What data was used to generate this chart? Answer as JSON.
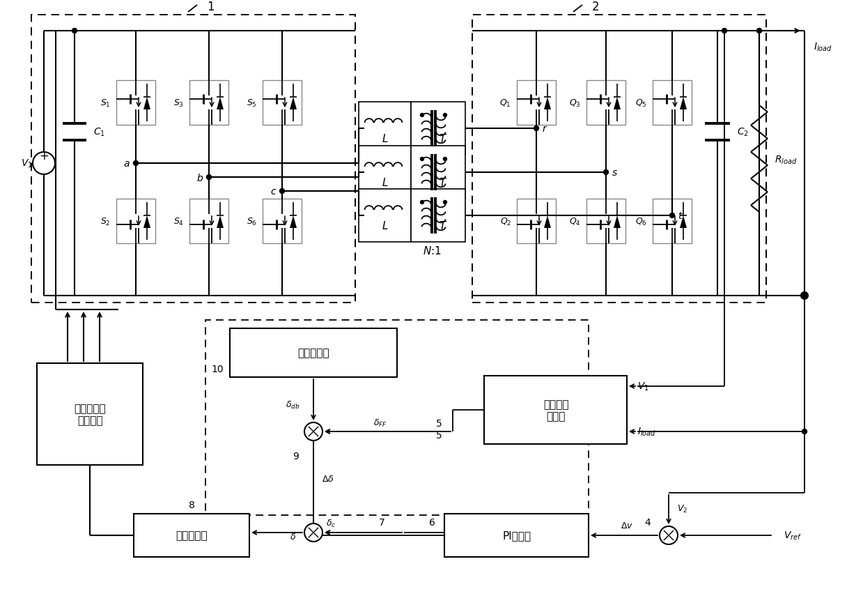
{
  "bg": "#ffffff",
  "box1": "功率开关管\n驱动信号",
  "box2": "死区补偿器",
  "box3": "移相调制器",
  "box4": "负载前馈\n补偿器",
  "box5": "PI调节器",
  "label1": "1",
  "label2": "2",
  "N1_label": "N:1"
}
